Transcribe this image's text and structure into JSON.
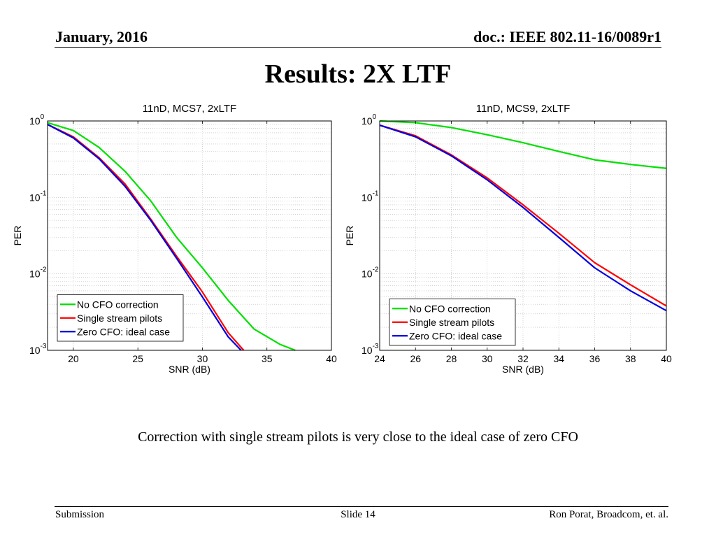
{
  "header": {
    "date": "January, 2016",
    "doc": "doc.: IEEE 802.11-16/0089r1"
  },
  "slide_title": "Results: 2X LTF",
  "caption": "Correction with single stream pilots is very close to the ideal case of zero CFO",
  "footer": {
    "left": "Submission",
    "center": "Slide 14",
    "right": "Ron Porat, Broadcom, et. al."
  },
  "chart_data": [
    {
      "type": "line",
      "title": "11nD, MCS7, 2xLTF",
      "xlabel": "SNR (dB)",
      "ylabel": "PER",
      "xlim": [
        18,
        40
      ],
      "ylim": [
        0.001,
        1
      ],
      "yscale": "log",
      "xticks": [
        20,
        25,
        30,
        35,
        40
      ],
      "yticks": [
        {
          "value": 1,
          "base": "10",
          "exp": "0"
        },
        {
          "value": 0.1,
          "base": "10",
          "exp": "-1"
        },
        {
          "value": 0.01,
          "base": "10",
          "exp": "-2"
        },
        {
          "value": 0.001,
          "base": "10",
          "exp": "-3"
        }
      ],
      "grid": true,
      "legend_position": "bottom-left",
      "series": [
        {
          "name": "No CFO correction",
          "color": "#00e000",
          "x": [
            18,
            20,
            22,
            24,
            26,
            28,
            30,
            32,
            34,
            36,
            37.2
          ],
          "y": [
            0.95,
            0.75,
            0.45,
            0.22,
            0.09,
            0.03,
            0.012,
            0.0045,
            0.0019,
            0.0012,
            0.001
          ]
        },
        {
          "name": "Single stream pilots",
          "color": "#ff0000",
          "x": [
            18,
            20,
            22,
            24,
            26,
            28,
            30,
            32,
            33.2
          ],
          "y": [
            0.9,
            0.62,
            0.33,
            0.15,
            0.052,
            0.017,
            0.0058,
            0.0017,
            0.001
          ]
        },
        {
          "name": "Zero CFO: ideal case",
          "color": "#0000e0",
          "x": [
            18,
            20,
            22,
            24,
            26,
            28,
            30,
            32,
            33
          ],
          "y": [
            0.9,
            0.6,
            0.32,
            0.14,
            0.05,
            0.016,
            0.005,
            0.0015,
            0.001
          ]
        }
      ]
    },
    {
      "type": "line",
      "title": "11nD, MCS9, 2xLTF",
      "xlabel": "SNR (dB)",
      "ylabel": "PER",
      "xlim": [
        24,
        40
      ],
      "ylim": [
        0.001,
        1
      ],
      "yscale": "log",
      "xticks": [
        24,
        26,
        28,
        30,
        32,
        34,
        36,
        38,
        40
      ],
      "yticks": [
        {
          "value": 1,
          "base": "10",
          "exp": "0"
        },
        {
          "value": 0.1,
          "base": "10",
          "exp": "-1"
        },
        {
          "value": 0.01,
          "base": "10",
          "exp": "-2"
        },
        {
          "value": 0.001,
          "base": "10",
          "exp": "-3"
        }
      ],
      "grid": true,
      "legend_position": "bottom-left",
      "series": [
        {
          "name": "No CFO correction",
          "color": "#00e000",
          "x": [
            24,
            26,
            28,
            30,
            32,
            34,
            36,
            38,
            40
          ],
          "y": [
            1.0,
            0.95,
            0.82,
            0.66,
            0.52,
            0.4,
            0.31,
            0.27,
            0.24
          ]
        },
        {
          "name": "Single stream pilots",
          "color": "#ff0000",
          "x": [
            24,
            26,
            28,
            30,
            32,
            34,
            36,
            38,
            40
          ],
          "y": [
            0.88,
            0.64,
            0.36,
            0.18,
            0.08,
            0.034,
            0.014,
            0.0072,
            0.0038
          ]
        },
        {
          "name": "Zero CFO: ideal case",
          "color": "#0000e0",
          "x": [
            24,
            26,
            28,
            30,
            32,
            34,
            36,
            38,
            40
          ],
          "y": [
            0.88,
            0.62,
            0.35,
            0.17,
            0.074,
            0.03,
            0.012,
            0.006,
            0.0033
          ]
        }
      ]
    }
  ]
}
